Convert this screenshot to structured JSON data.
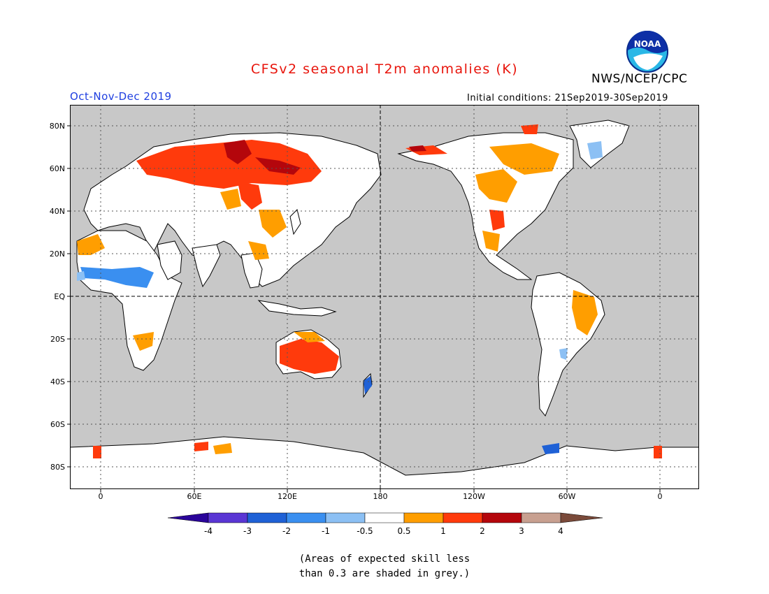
{
  "header": {
    "title": "CFSv2 seasonal T2m anomalies (K)",
    "agency": "NWS/NCEP/CPC",
    "season": "Oct-Nov-Dec 2019",
    "initial_conditions": "Initial conditions: 21Sep2019-30Sep2019",
    "logo_text": "NOAA"
  },
  "map": {
    "lat_labels": [
      "80N",
      "60N",
      "40N",
      "20N",
      "EQ",
      "20S",
      "40S",
      "60S",
      "80S"
    ],
    "lon_labels": [
      "0",
      "60E",
      "120E",
      "180",
      "120W",
      "60W",
      "0"
    ],
    "ocean_color": "#c8c8c8",
    "land_color": "#ffffff",
    "grid_style": "dotted"
  },
  "colorbar": {
    "labels": [
      "-4",
      "-3",
      "-2",
      "-1",
      "-0.5",
      "0.5",
      "1",
      "2",
      "3",
      "4"
    ],
    "colors": [
      "#2a049a",
      "#5a36d4",
      "#1f61d6",
      "#3a8ff0",
      "#8cc0f4",
      "#ffffff",
      "#ff9e00",
      "#ff3a0c",
      "#b4060c",
      "#c8a090",
      "#7a4a3a"
    ]
  },
  "footnote": {
    "line1": "(Areas of expected skill less",
    "line2": "than 0.3 are shaded in grey.)"
  }
}
